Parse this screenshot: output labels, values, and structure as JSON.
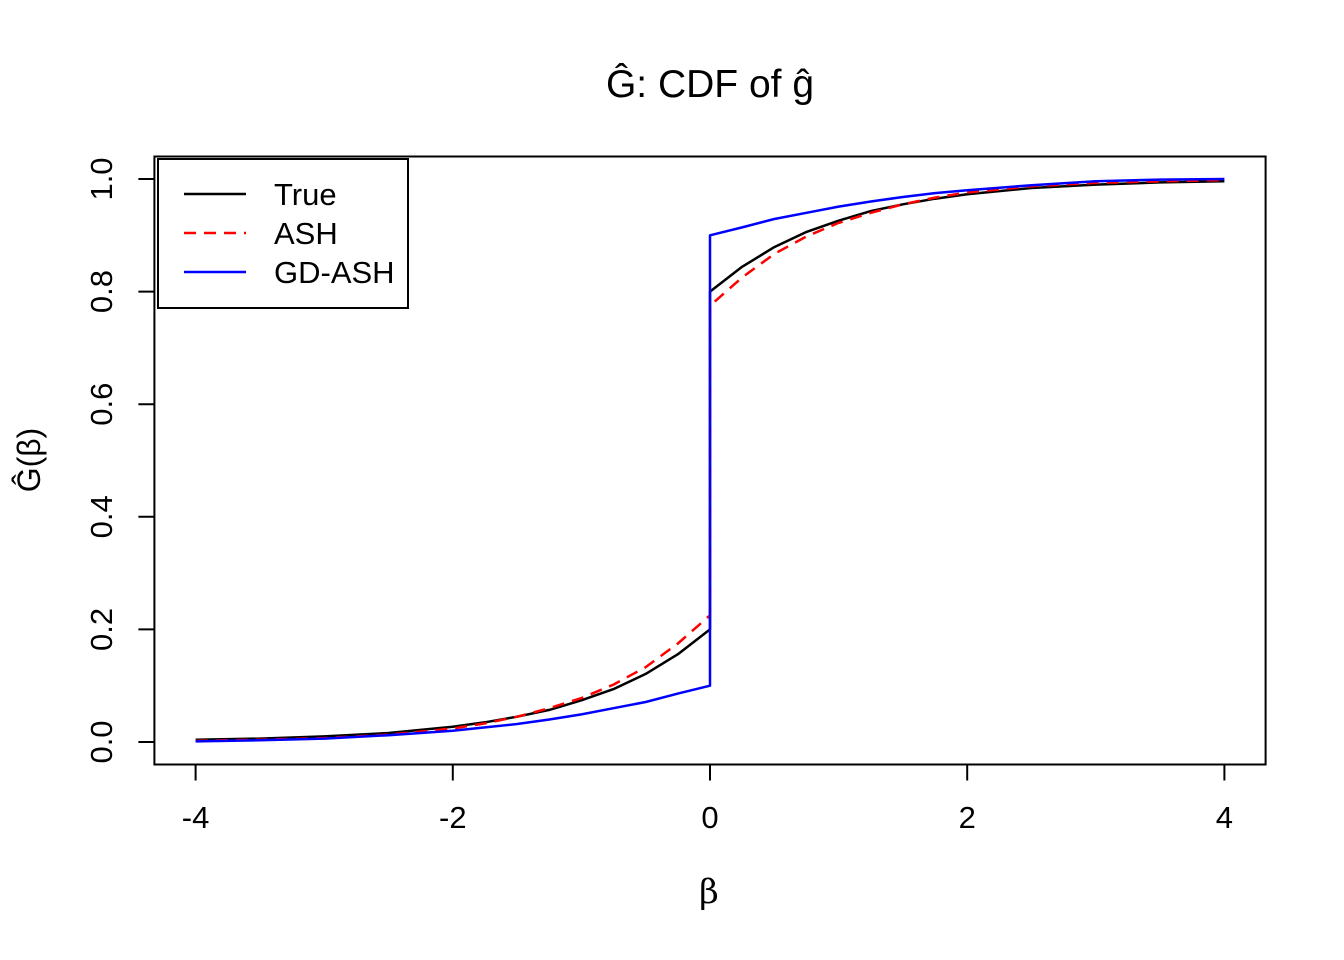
{
  "figure": {
    "background": "#FFFFFF",
    "axis_color": "#000000"
  },
  "chart_data": {
    "type": "line",
    "title": "Ĝ: CDF of ĝ",
    "xlabel": "β",
    "ylabel": "Ĝ(β)",
    "xlim": [
      -4,
      4
    ],
    "ylim": [
      0,
      1
    ],
    "x_ticks": [
      -4,
      -2,
      0,
      2,
      4
    ],
    "x_tick_labels": [
      "-4",
      "-2",
      "0",
      "2",
      "4"
    ],
    "y_ticks": [
      0,
      0.2,
      0.4,
      0.6,
      0.8,
      1
    ],
    "y_tick_labels": [
      "0.0",
      "0.2",
      "0.4",
      "0.6",
      "0.8",
      "1.0"
    ],
    "grid": false,
    "legend_position": "topleft",
    "series": [
      {
        "name": "True",
        "color": "#000000",
        "dash": "solid",
        "jump_at_zero": [
          0.2,
          0.8
        ],
        "points": [
          [
            -4,
            0.004
          ],
          [
            -3.5,
            0.006
          ],
          [
            -3,
            0.01
          ],
          [
            -2.5,
            0.016
          ],
          [
            -2,
            0.027
          ],
          [
            -1.75,
            0.035
          ],
          [
            -1.5,
            0.045
          ],
          [
            -1.25,
            0.057
          ],
          [
            -1,
            0.074
          ],
          [
            -0.75,
            0.094
          ],
          [
            -0.5,
            0.121
          ],
          [
            -0.25,
            0.156
          ],
          [
            0,
            0.2
          ],
          [
            0,
            0.8
          ],
          [
            0.25,
            0.844
          ],
          [
            0.5,
            0.879
          ],
          [
            0.75,
            0.906
          ],
          [
            1,
            0.926
          ],
          [
            1.25,
            0.943
          ],
          [
            1.5,
            0.955
          ],
          [
            1.75,
            0.965
          ],
          [
            2,
            0.973
          ],
          [
            2.5,
            0.984
          ],
          [
            3,
            0.99
          ],
          [
            3.5,
            0.994
          ],
          [
            4,
            0.996
          ]
        ]
      },
      {
        "name": "ASH",
        "color": "#FF0000",
        "dash": "dashed",
        "jump_at_zero": [
          0.225,
          0.775
        ],
        "points": [
          [
            -4,
            0.002
          ],
          [
            -3.5,
            0.004
          ],
          [
            -3,
            0.007
          ],
          [
            -2.5,
            0.013
          ],
          [
            -2,
            0.024
          ],
          [
            -1.75,
            0.033
          ],
          [
            -1.5,
            0.045
          ],
          [
            -1.25,
            0.06
          ],
          [
            -1,
            0.078
          ],
          [
            -0.75,
            0.102
          ],
          [
            -0.5,
            0.133
          ],
          [
            -0.25,
            0.175
          ],
          [
            0,
            0.225
          ],
          [
            0,
            0.775
          ],
          [
            0.25,
            0.825
          ],
          [
            0.5,
            0.867
          ],
          [
            0.75,
            0.898
          ],
          [
            1,
            0.922
          ],
          [
            1.25,
            0.94
          ],
          [
            1.5,
            0.955
          ],
          [
            1.75,
            0.967
          ],
          [
            2,
            0.976
          ],
          [
            2.5,
            0.987
          ],
          [
            3,
            0.993
          ],
          [
            3.5,
            0.996
          ],
          [
            4,
            0.998
          ]
        ]
      },
      {
        "name": "GD-ASH",
        "color": "#0000FF",
        "dash": "solid",
        "jump_at_zero": [
          0.1,
          0.9
        ],
        "points": [
          [
            -4,
            0.001
          ],
          [
            -3.5,
            0.003
          ],
          [
            -3,
            0.006
          ],
          [
            -2.5,
            0.012
          ],
          [
            -2,
            0.02
          ],
          [
            -1.75,
            0.026
          ],
          [
            -1.5,
            0.032
          ],
          [
            -1.25,
            0.04
          ],
          [
            -1,
            0.049
          ],
          [
            -0.75,
            0.06
          ],
          [
            -0.5,
            0.071
          ],
          [
            -0.25,
            0.086
          ],
          [
            0,
            0.1
          ],
          [
            0,
            0.9
          ],
          [
            0.25,
            0.914
          ],
          [
            0.5,
            0.929
          ],
          [
            0.75,
            0.94
          ],
          [
            1,
            0.951
          ],
          [
            1.25,
            0.96
          ],
          [
            1.5,
            0.968
          ],
          [
            1.75,
            0.975
          ],
          [
            2,
            0.98
          ],
          [
            2.5,
            0.989
          ],
          [
            3,
            0.996
          ],
          [
            3.5,
            0.999
          ],
          [
            4,
            1.0
          ]
        ]
      }
    ]
  }
}
